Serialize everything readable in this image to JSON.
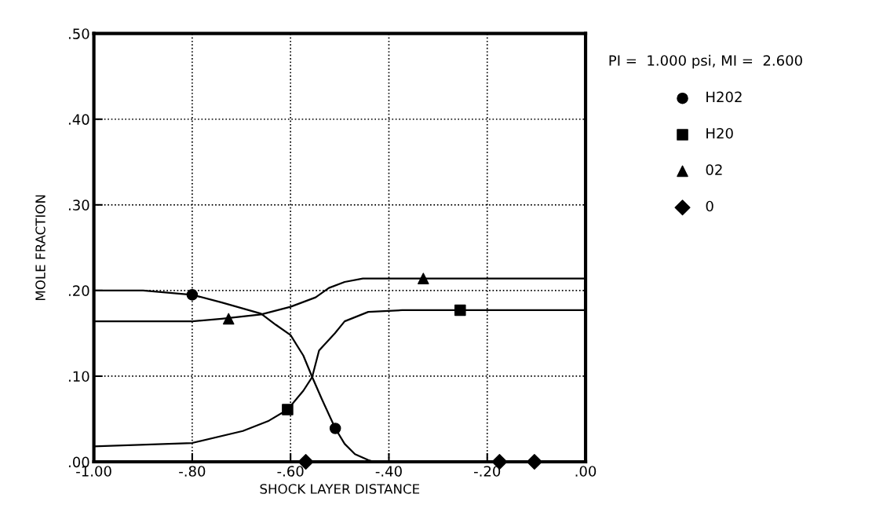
{
  "chart_data": {
    "type": "line",
    "xlabel": "SHOCK LAYER DISTANCE",
    "ylabel": "MOLE FRACTION",
    "legend_title": "PI =  1.000 psi, MI =  2.600",
    "xlim": [
      -1.0,
      0.0
    ],
    "ylim": [
      0.0,
      0.5
    ],
    "xticks": [
      {
        "value": -1.0,
        "label": "-1.00"
      },
      {
        "value": -0.8,
        "label": "-.80"
      },
      {
        "value": -0.6,
        "label": "-.60"
      },
      {
        "value": -0.4,
        "label": "-.40"
      },
      {
        "value": -0.2,
        "label": "-.20"
      },
      {
        "value": 0.0,
        "label": ".00"
      }
    ],
    "yticks": [
      {
        "value": 0.0,
        "label": ".00"
      },
      {
        "value": 0.1,
        "label": ".10"
      },
      {
        "value": 0.2,
        "label": ".20"
      },
      {
        "value": 0.3,
        "label": ".30"
      },
      {
        "value": 0.4,
        "label": ".40"
      },
      {
        "value": 0.5,
        "label": ".50"
      }
    ],
    "grid": true,
    "legend": "top right",
    "line_style": "solid",
    "series": [
      {
        "color": "#000000",
        "x": [
          -1.0,
          -0.9,
          -0.8,
          -0.74,
          -0.66,
          -0.63,
          -0.6,
          -0.574,
          -0.556,
          -0.537,
          -0.509,
          -0.49,
          -0.469,
          -0.442,
          -0.43,
          0.0
        ],
        "values": [
          0.2,
          0.2,
          0.195,
          0.186,
          0.173,
          0.16,
          0.148,
          0.124,
          0.099,
          0.074,
          0.039,
          0.021,
          0.009,
          0.002,
          0.0,
          0.0
        ]
      },
      {
        "color": "#000000",
        "x": [
          -1.0,
          -0.8,
          -0.697,
          -0.644,
          -0.606,
          -0.574,
          -0.556,
          -0.542,
          -0.51,
          -0.49,
          -0.442,
          -0.373,
          0.0
        ],
        "values": [
          0.018,
          0.022,
          0.036,
          0.048,
          0.061,
          0.083,
          0.099,
          0.13,
          0.15,
          0.164,
          0.175,
          0.177,
          0.177
        ]
      },
      {
        "color": "#000000",
        "x": [
          -1.0,
          -0.8,
          -0.74,
          -0.66,
          -0.6,
          -0.549,
          -0.522,
          -0.49,
          -0.453,
          0.0
        ],
        "values": [
          0.164,
          0.164,
          0.167,
          0.172,
          0.181,
          0.192,
          0.203,
          0.21,
          0.214,
          0.214
        ]
      },
      {
        "type": "scatter",
        "name": "H202",
        "color": "#000000",
        "marker": "circle",
        "x": [
          -0.8,
          -0.509
        ],
        "values": [
          0.195,
          0.039
        ]
      },
      {
        "type": "scatter",
        "name": "H20",
        "color": "#000000",
        "marker": "square",
        "x": [
          -0.606,
          -0.255
        ],
        "values": [
          0.061,
          0.177
        ]
      },
      {
        "type": "scatter",
        "name": "02",
        "color": "#000000",
        "marker": "triangle",
        "x": [
          -0.726,
          -0.33
        ],
        "values": [
          0.167,
          0.214
        ]
      },
      {
        "type": "scatter",
        "name": "0",
        "color": "#000000",
        "marker": "diamond",
        "x": [
          -0.569,
          -0.175,
          -0.104
        ],
        "values": [
          0.0,
          0.0,
          0.0
        ]
      }
    ]
  }
}
